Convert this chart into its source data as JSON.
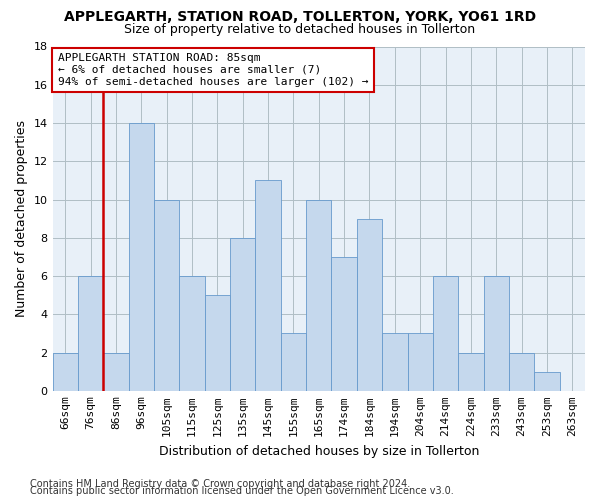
{
  "title": "APPLEGARTH, STATION ROAD, TOLLERTON, YORK, YO61 1RD",
  "subtitle": "Size of property relative to detached houses in Tollerton",
  "xlabel": "Distribution of detached houses by size in Tollerton",
  "ylabel": "Number of detached properties",
  "footer1": "Contains HM Land Registry data © Crown copyright and database right 2024.",
  "footer2": "Contains public sector information licensed under the Open Government Licence v3.0.",
  "annotation_title": "APPLEGARTH STATION ROAD: 85sqm",
  "annotation_line2": "← 6% of detached houses are smaller (7)",
  "annotation_line3": "94% of semi-detached houses are larger (102) →",
  "red_line_index": 2,
  "bar_color": "#c5d8ed",
  "bar_edge_color": "#6699cc",
  "red_line_color": "#cc0000",
  "categories": [
    "66sqm",
    "76sqm",
    "86sqm",
    "96sqm",
    "105sqm",
    "115sqm",
    "125sqm",
    "135sqm",
    "145sqm",
    "155sqm",
    "165sqm",
    "174sqm",
    "184sqm",
    "194sqm",
    "204sqm",
    "214sqm",
    "224sqm",
    "233sqm",
    "243sqm",
    "253sqm",
    "263sqm"
  ],
  "values": [
    2,
    6,
    2,
    14,
    10,
    6,
    5,
    8,
    11,
    3,
    10,
    7,
    9,
    3,
    3,
    6,
    2,
    6,
    2,
    1,
    0
  ],
  "ylim": [
    0,
    18
  ],
  "yticks": [
    0,
    2,
    4,
    6,
    8,
    10,
    12,
    14,
    16,
    18
  ],
  "bg_color": "#ffffff",
  "plot_bg_color": "#e8f0f8",
  "grid_color": "#b0bec5",
  "annotation_box_color": "#ffffff",
  "annotation_border_color": "#cc0000",
  "title_fontsize": 10,
  "subtitle_fontsize": 9,
  "axis_label_fontsize": 9,
  "tick_fontsize": 8,
  "annotation_fontsize": 8,
  "footer_fontsize": 7
}
